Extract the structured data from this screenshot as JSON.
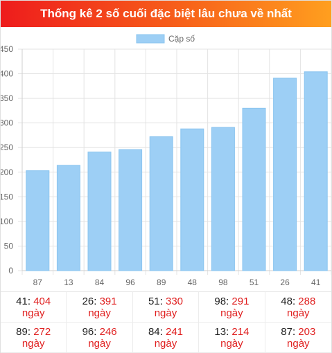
{
  "header": {
    "title": "Thống kê 2 số cuối đặc biệt lâu chưa về nhất"
  },
  "chart_data": {
    "type": "bar",
    "categories": [
      "87",
      "13",
      "84",
      "96",
      "89",
      "48",
      "98",
      "51",
      "26",
      "41"
    ],
    "series": [
      {
        "name": "Cặp số",
        "values": [
          203,
          214,
          241,
          246,
          272,
          288,
          291,
          330,
          391,
          404
        ]
      }
    ],
    "ylim": [
      0,
      450
    ],
    "yticks": [
      0,
      50,
      100,
      150,
      200,
      250,
      300,
      350,
      400,
      450
    ],
    "ytick_labels": [
      "0",
      "50",
      "100",
      "150",
      "200",
      "250",
      "300",
      "350",
      "400",
      "450"
    ],
    "legend_position": "top",
    "grid": true,
    "colors": {
      "bar": "#9dcff5",
      "bar_stroke": "#8ac4ef",
      "grid": "#e3e3e3"
    }
  },
  "stats": [
    {
      "num": "41",
      "value": "404",
      "unit": "ngày"
    },
    {
      "num": "26",
      "value": "391",
      "unit": "ngày"
    },
    {
      "num": "51",
      "value": "330",
      "unit": "ngày"
    },
    {
      "num": "98",
      "value": "291",
      "unit": "ngày"
    },
    {
      "num": "48",
      "value": "288",
      "unit": "ngày"
    },
    {
      "num": "89",
      "value": "272",
      "unit": "ngày"
    },
    {
      "num": "96",
      "value": "246",
      "unit": "ngày"
    },
    {
      "num": "84",
      "value": "241",
      "unit": "ngày"
    },
    {
      "num": "13",
      "value": "214",
      "unit": "ngày"
    },
    {
      "num": "87",
      "value": "203",
      "unit": "ngày"
    }
  ]
}
